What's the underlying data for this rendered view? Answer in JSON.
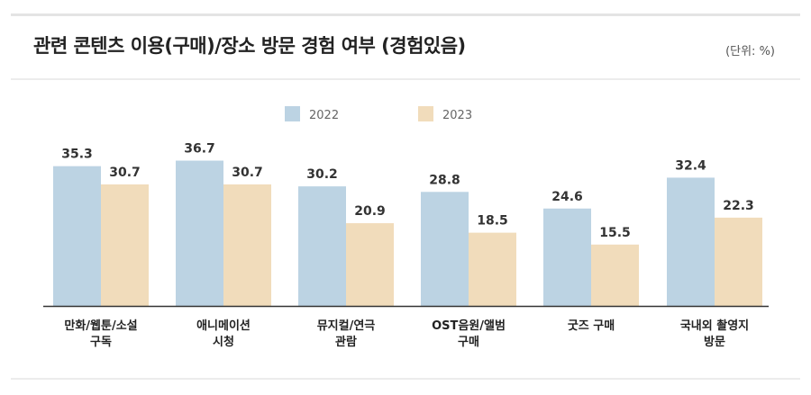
{
  "header": {
    "title": "관련 콘텐츠 이용(구매)/장소 방문 경험 여부 (경험있음)",
    "unit": "(단위: %)"
  },
  "colors": {
    "series_2022": "#bcd3e3",
    "series_2023": "#f1dcbb",
    "axis": "#333333"
  },
  "chart_data": {
    "type": "bar",
    "title": "관련 콘텐츠 이용(구매)/장소 방문 경험 여부 (경험있음)",
    "unit": "(단위: %)",
    "categories": [
      [
        "만화/웹툰/소설",
        "구독"
      ],
      [
        "애니메이션",
        "시청"
      ],
      [
        "뮤지컬/연극",
        "관람"
      ],
      [
        "OST음원/앨범",
        "구매"
      ],
      [
        "굿즈 구매"
      ],
      [
        "국내외 촬영지",
        "방문"
      ]
    ],
    "series": [
      {
        "name": "2022",
        "values": [
          35.3,
          36.7,
          30.2,
          28.8,
          24.6,
          32.4
        ]
      },
      {
        "name": "2023",
        "values": [
          30.7,
          30.7,
          20.9,
          18.5,
          15.5,
          22.3
        ]
      }
    ],
    "ylim": [
      0,
      40
    ],
    "legend": "top-center",
    "grid": false
  }
}
